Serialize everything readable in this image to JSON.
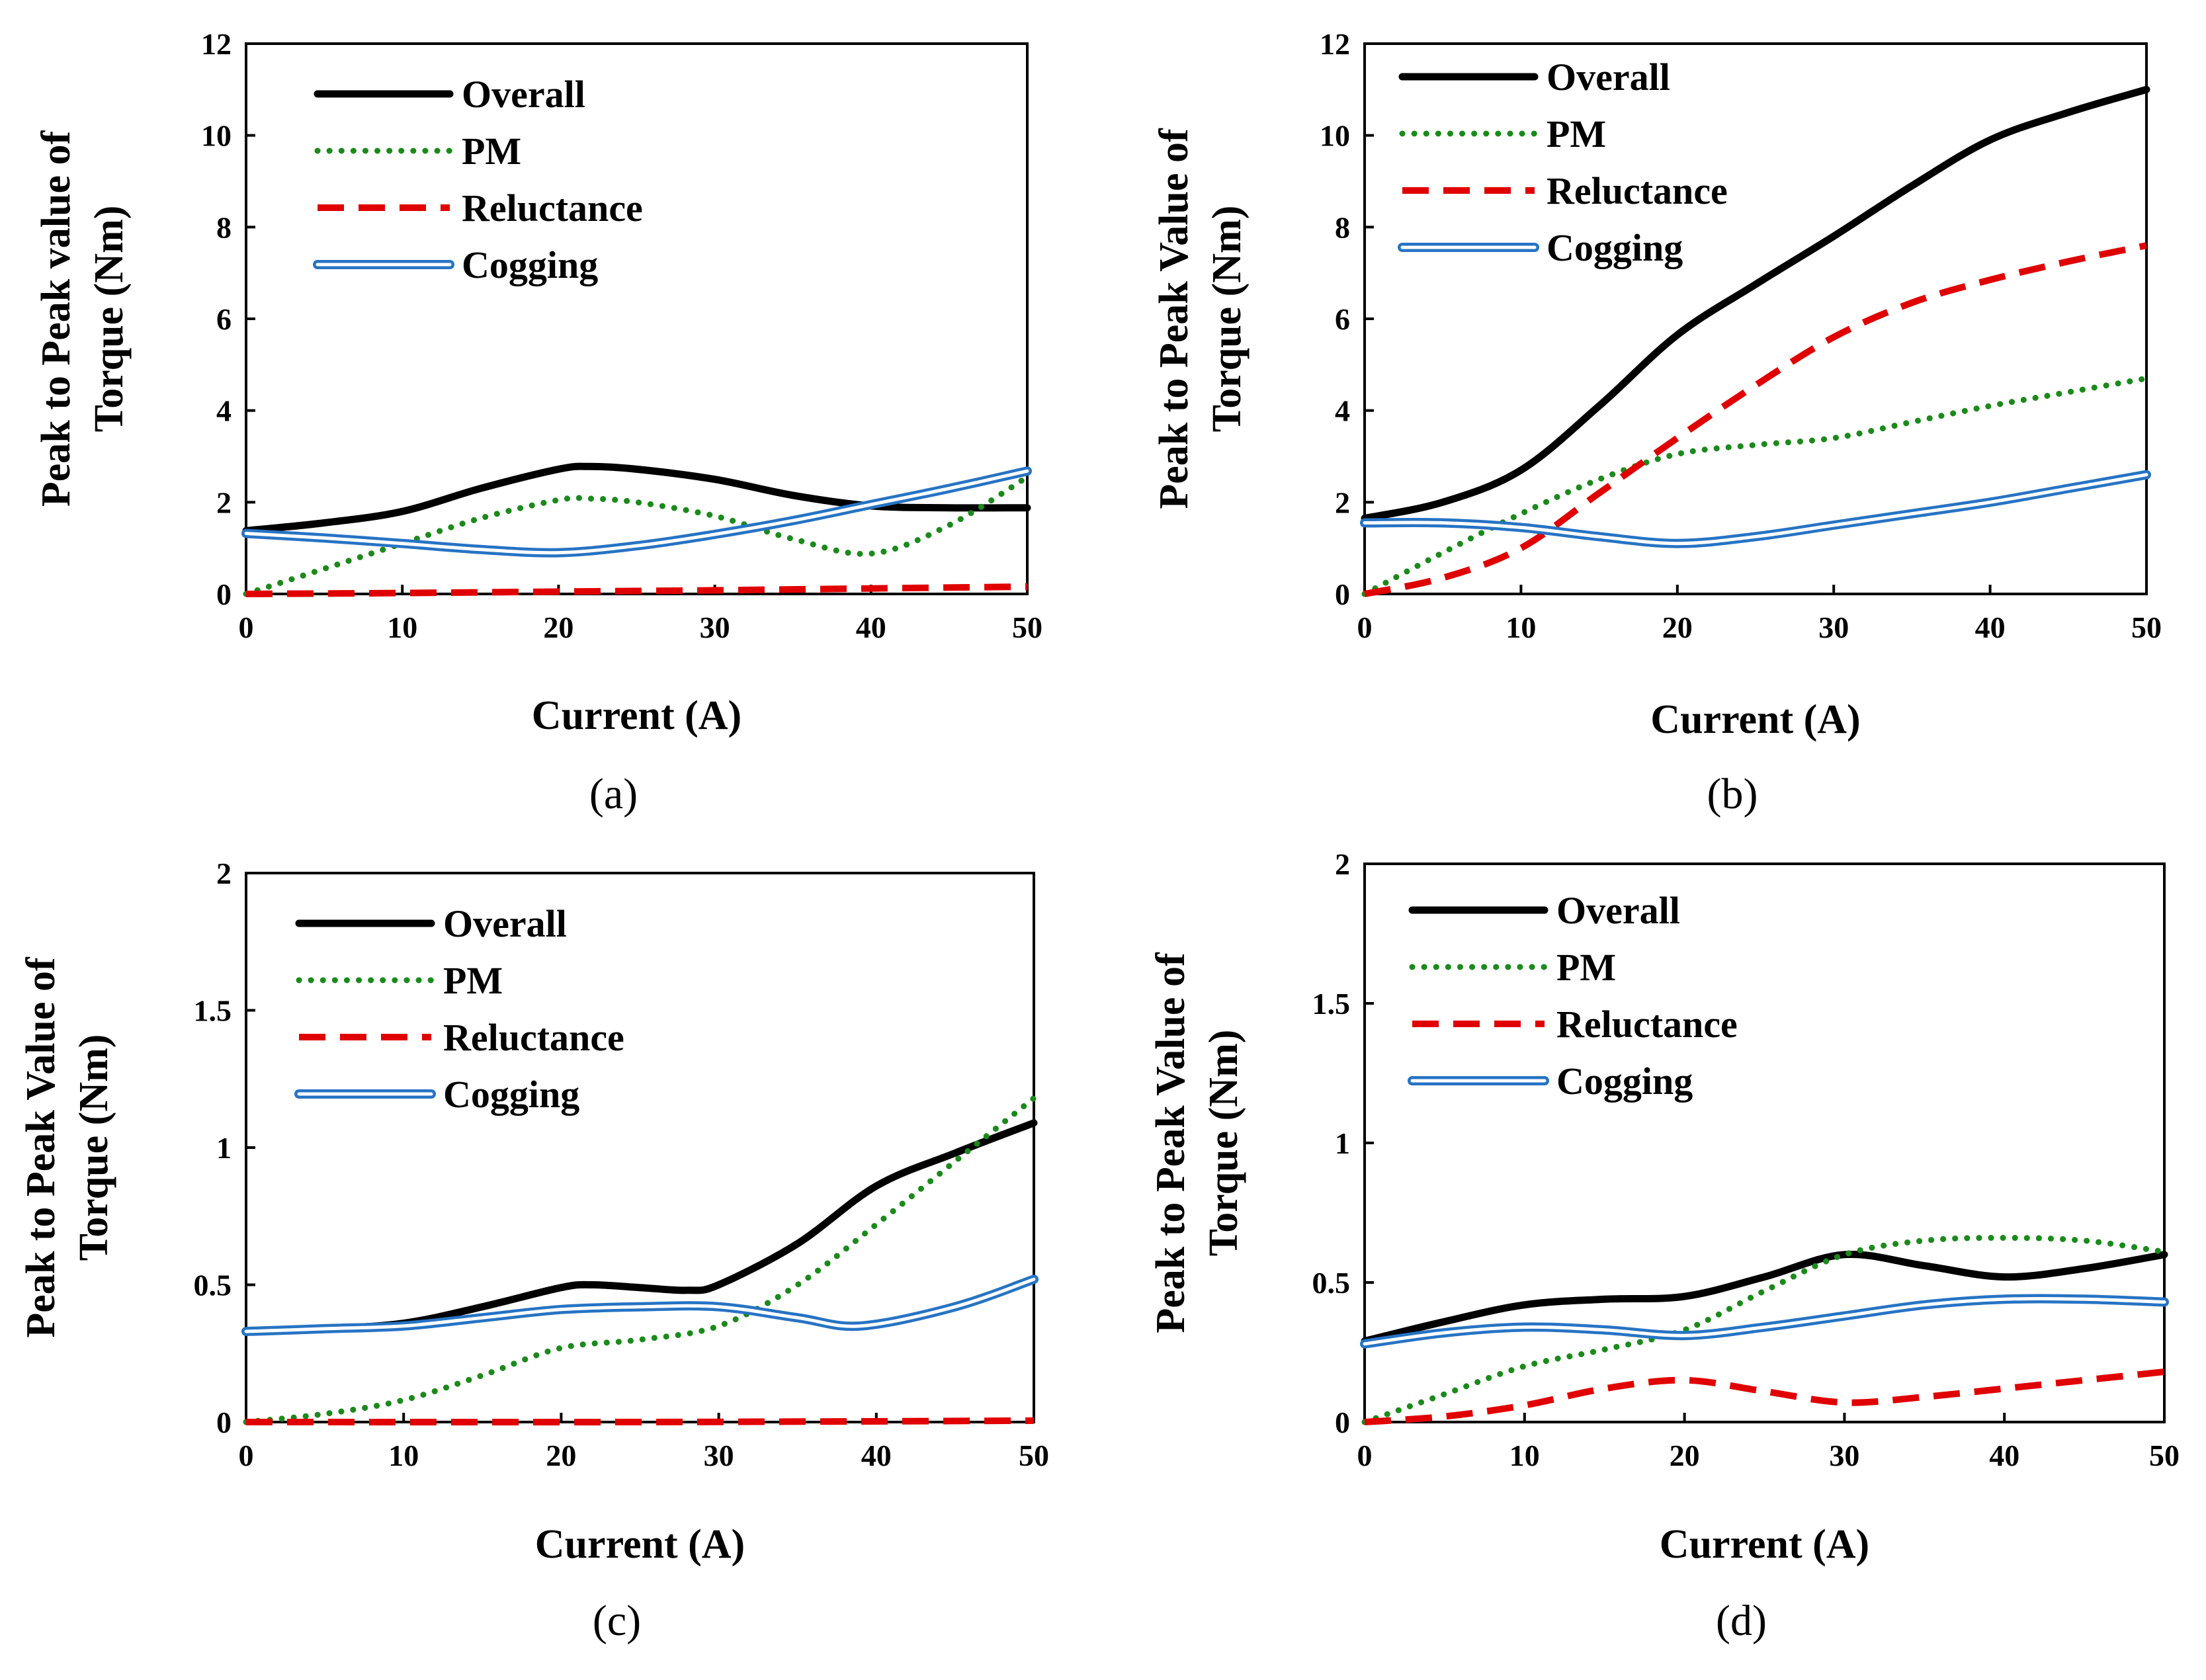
{
  "colors": {
    "overall": "#000000",
    "pm": "#1a8a1a",
    "reluctance": "#e00000",
    "cogging": "#2673c4"
  },
  "chart_data": [
    {
      "type": "line",
      "panel": "(a)",
      "xlabel": "Current (A)",
      "ylabel_lines": [
        "Peak to Peak value of",
        "Torque (Nm)"
      ],
      "xlim": [
        0,
        50
      ],
      "ylim": [
        0,
        12
      ],
      "x_ticks": [
        0,
        10,
        20,
        30,
        40,
        50
      ],
      "y_ticks": [
        0,
        2,
        4,
        6,
        8,
        10,
        12
      ],
      "x_tick_labels": [
        "0",
        "10",
        "20",
        "30",
        "40",
        "50"
      ],
      "y_tick_labels": [
        "0",
        "2",
        "4",
        "6",
        "8",
        "10",
        "12"
      ],
      "legend_placement": "top-left",
      "series": [
        {
          "name": "Overall",
          "style": "solid",
          "x": [
            0,
            5,
            10,
            15,
            20,
            22,
            25,
            30,
            35,
            40,
            45,
            50
          ],
          "values": [
            1.38,
            1.55,
            1.8,
            2.3,
            2.72,
            2.78,
            2.72,
            2.5,
            2.15,
            1.92,
            1.88,
            1.88
          ]
        },
        {
          "name": "PM",
          "style": "dotted",
          "x": [
            0,
            5,
            10,
            15,
            20,
            22,
            25,
            30,
            35,
            40,
            45,
            50
          ],
          "values": [
            0.0,
            0.55,
            1.1,
            1.65,
            2.05,
            2.08,
            2.0,
            1.7,
            1.2,
            0.88,
            1.5,
            2.55
          ]
        },
        {
          "name": "Reluctance",
          "style": "dashed",
          "x": [
            0,
            10,
            20,
            30,
            40,
            50
          ],
          "values": [
            0.0,
            0.02,
            0.05,
            0.08,
            0.12,
            0.16
          ]
        },
        {
          "name": "Cogging",
          "style": "double",
          "x": [
            0,
            5,
            10,
            15,
            20,
            25,
            30,
            35,
            40,
            45,
            50
          ],
          "values": [
            1.32,
            1.22,
            1.1,
            0.97,
            0.9,
            1.05,
            1.3,
            1.6,
            1.95,
            2.3,
            2.68
          ]
        }
      ]
    },
    {
      "type": "line",
      "panel": "(b)",
      "xlabel": "Current (A)",
      "ylabel_lines": [
        "Peak to Peak Value of",
        "Torque (Nm)"
      ],
      "xlim": [
        0,
        50
      ],
      "ylim": [
        0,
        12
      ],
      "x_ticks": [
        0,
        10,
        20,
        30,
        40,
        50
      ],
      "y_ticks": [
        0,
        2,
        4,
        6,
        8,
        10,
        12
      ],
      "x_tick_labels": [
        "0",
        "10",
        "20",
        "30",
        "40",
        "50"
      ],
      "y_tick_labels": [
        "0",
        "2",
        "4",
        "6",
        "8",
        "10",
        "12"
      ],
      "legend_placement": "top-left",
      "series": [
        {
          "name": "Overall",
          "style": "solid",
          "x": [
            0,
            5,
            10,
            15,
            20,
            25,
            30,
            35,
            40,
            45,
            50
          ],
          "values": [
            1.65,
            2.0,
            2.7,
            4.1,
            5.65,
            6.75,
            7.8,
            8.9,
            9.9,
            10.5,
            11.0
          ]
        },
        {
          "name": "PM",
          "style": "dotted",
          "x": [
            0,
            5,
            10,
            15,
            20,
            25,
            30,
            35,
            40,
            45,
            50
          ],
          "values": [
            0.0,
            0.9,
            1.75,
            2.5,
            3.05,
            3.25,
            3.4,
            3.75,
            4.1,
            4.4,
            4.7
          ]
        },
        {
          "name": "Reluctance",
          "style": "dashed",
          "x": [
            0,
            5,
            10,
            15,
            20,
            25,
            30,
            35,
            40,
            45,
            50
          ],
          "values": [
            0.0,
            0.35,
            1.0,
            2.2,
            3.4,
            4.55,
            5.6,
            6.35,
            6.85,
            7.25,
            7.6
          ]
        },
        {
          "name": "Cogging",
          "style": "double",
          "x": [
            0,
            5,
            10,
            15,
            20,
            25,
            30,
            35,
            40,
            45,
            50
          ],
          "values": [
            1.55,
            1.55,
            1.45,
            1.25,
            1.1,
            1.25,
            1.5,
            1.75,
            2.0,
            2.3,
            2.6
          ]
        }
      ]
    },
    {
      "type": "line",
      "panel": "(c)",
      "xlabel": "Current (A)",
      "ylabel_lines": [
        "Peak to Peak Value of",
        "Torque (Nm)"
      ],
      "xlim": [
        0,
        50
      ],
      "ylim": [
        0,
        2
      ],
      "x_ticks": [
        0,
        10,
        20,
        30,
        40,
        50
      ],
      "y_ticks": [
        0,
        0.5,
        1,
        1.5,
        2
      ],
      "x_tick_labels": [
        "0",
        "10",
        "20",
        "30",
        "40",
        "50"
      ],
      "y_tick_labels": [
        "0",
        "0.5",
        "1",
        "1.5",
        "2"
      ],
      "legend_placement": "top-left",
      "series": [
        {
          "name": "Overall",
          "style": "solid",
          "x": [
            0,
            5,
            10,
            15,
            20,
            22,
            25,
            28,
            30,
            35,
            40,
            45,
            50
          ],
          "values": [
            0.33,
            0.34,
            0.36,
            0.42,
            0.49,
            0.5,
            0.49,
            0.48,
            0.5,
            0.65,
            0.86,
            0.98,
            1.09
          ]
        },
        {
          "name": "PM",
          "style": "dotted",
          "x": [
            0,
            5,
            10,
            15,
            20,
            25,
            30,
            35,
            40,
            45,
            50
          ],
          "values": [
            0.0,
            0.03,
            0.08,
            0.17,
            0.27,
            0.3,
            0.35,
            0.5,
            0.72,
            0.95,
            1.18
          ]
        },
        {
          "name": "Reluctance",
          "style": "dashed",
          "x": [
            0,
            25,
            50
          ],
          "values": [
            0.0,
            0.0,
            0.005
          ]
        },
        {
          "name": "Cogging",
          "style": "double",
          "x": [
            0,
            5,
            10,
            15,
            20,
            25,
            30,
            35,
            39,
            45,
            50
          ],
          "values": [
            0.33,
            0.34,
            0.35,
            0.38,
            0.41,
            0.42,
            0.42,
            0.38,
            0.35,
            0.42,
            0.52
          ]
        }
      ]
    },
    {
      "type": "line",
      "panel": "(d)",
      "xlabel": "Current (A)",
      "ylabel_lines": [
        "Peak to Peak Value of",
        "Torque (Nm)"
      ],
      "xlim": [
        0,
        50
      ],
      "ylim": [
        0,
        2
      ],
      "x_ticks": [
        0,
        10,
        20,
        30,
        40,
        50
      ],
      "y_ticks": [
        0,
        0.5,
        1,
        1.5,
        2
      ],
      "x_tick_labels": [
        "0",
        "10",
        "20",
        "30",
        "40",
        "50"
      ],
      "y_tick_labels": [
        "0",
        "0.5",
        "1",
        "1.5",
        "2"
      ],
      "legend_placement": "top-left",
      "series": [
        {
          "name": "Overall",
          "style": "solid",
          "x": [
            0,
            5,
            10,
            15,
            20,
            25,
            30,
            35,
            40,
            45,
            50
          ],
          "values": [
            0.29,
            0.36,
            0.42,
            0.44,
            0.45,
            0.52,
            0.6,
            0.56,
            0.52,
            0.55,
            0.6
          ]
        },
        {
          "name": "PM",
          "style": "dotted",
          "x": [
            0,
            5,
            10,
            15,
            20,
            25,
            30,
            35,
            40,
            45,
            50
          ],
          "values": [
            0.0,
            0.1,
            0.2,
            0.26,
            0.33,
            0.47,
            0.6,
            0.65,
            0.66,
            0.65,
            0.61
          ]
        },
        {
          "name": "Reluctance",
          "style": "dashed",
          "x": [
            0,
            5,
            10,
            15,
            20,
            25,
            30,
            35,
            40,
            45,
            50
          ],
          "values": [
            0.0,
            0.02,
            0.06,
            0.12,
            0.15,
            0.11,
            0.07,
            0.09,
            0.12,
            0.15,
            0.18
          ]
        },
        {
          "name": "Cogging",
          "style": "double",
          "x": [
            0,
            5,
            10,
            15,
            20,
            25,
            30,
            35,
            40,
            45,
            50
          ],
          "values": [
            0.28,
            0.32,
            0.34,
            0.33,
            0.31,
            0.34,
            0.38,
            0.42,
            0.44,
            0.44,
            0.43
          ]
        }
      ]
    }
  ]
}
